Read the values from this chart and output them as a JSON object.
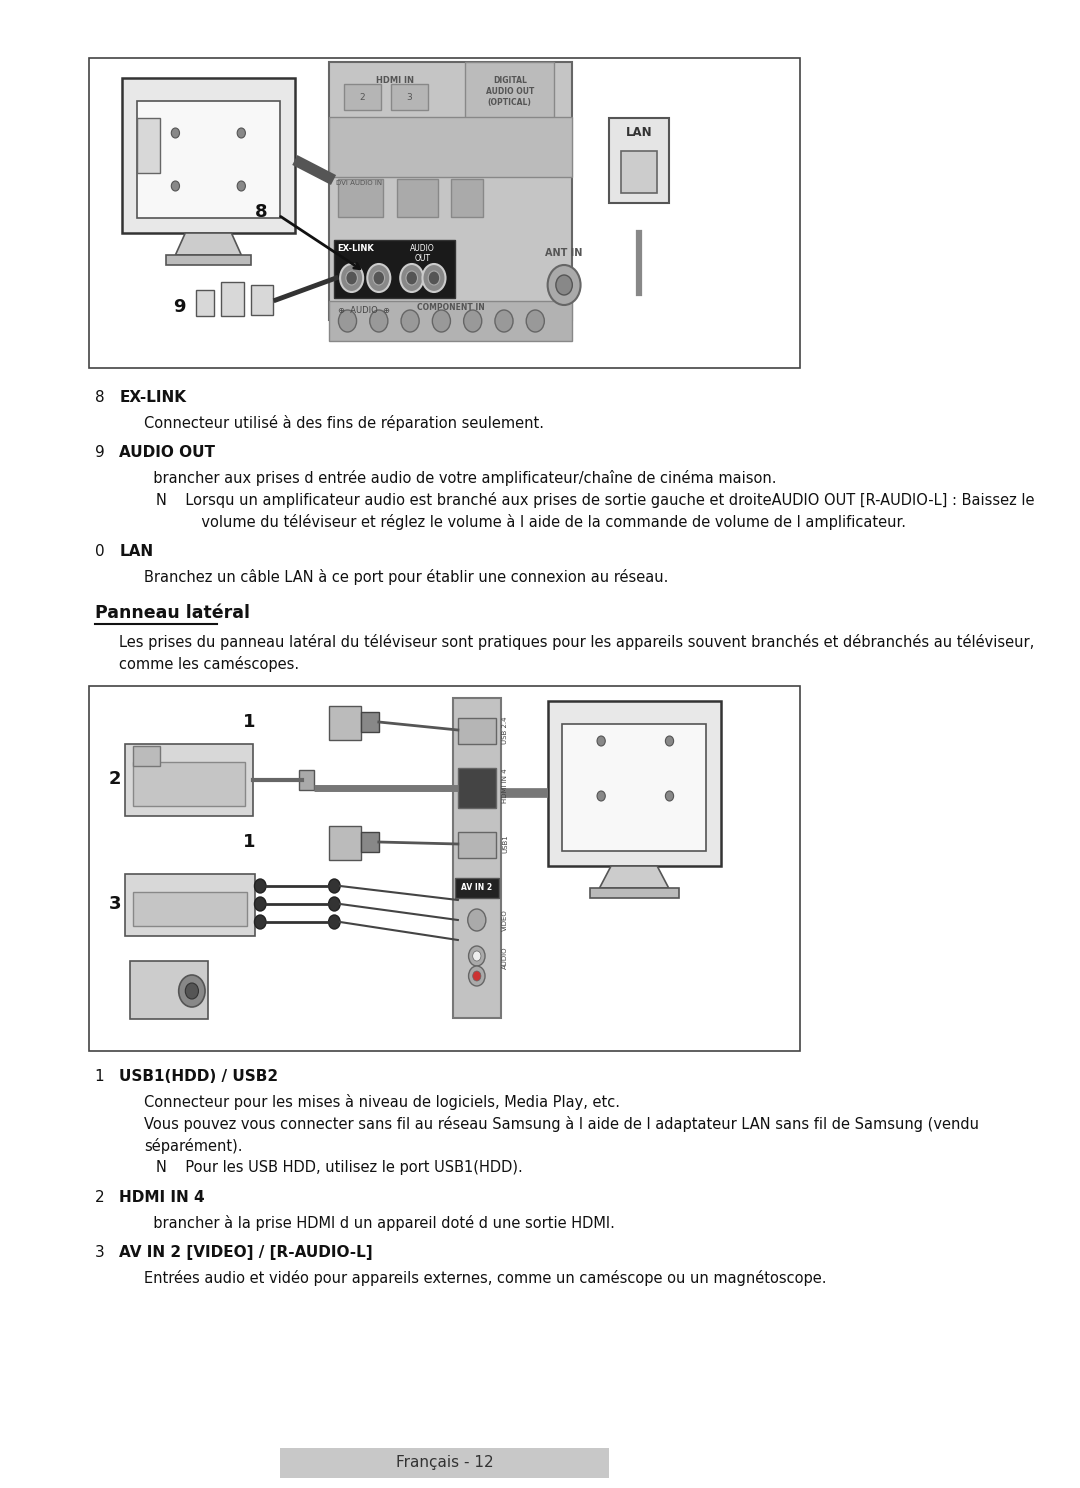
{
  "bg_color": "#ffffff",
  "border_color": "#000000",
  "text_color": "#000000",
  "section_title": "Panneau latéral",
  "section_intro_1": "Les prises du panneau latéral du téléviseur sont pratiques pour les appareils souvent branchés et débranchés au téléviseur,",
  "section_intro_2": "comme les caméscopes.",
  "items_top": [
    {
      "num": "8",
      "label": "EX-LINK",
      "desc": "Connecteur utilisé à des fins de réparation seulement.",
      "note": ""
    },
    {
      "num": "9",
      "label": "AUDIO OUT",
      "desc": "  brancher aux prises d entrée audio de votre amplificateur/chaîne de cinéma maison.",
      "note": "N    Lorsqu un amplificateur audio est branché aux prises de sortie gauche et droiteAUDIO OUT [R-AUDIO-L] : Baissez le",
      "note2": "       volume du téléviseur et réglez le volume à l aide de la commande de volume de l amplificateur."
    },
    {
      "num": "0",
      "label": "LAN",
      "desc": "Branchez un câble LAN à ce port pour établir une connexion au réseau.",
      "note": ""
    }
  ],
  "items_bottom": [
    {
      "num": "1",
      "label": "USB1(HDD) / USB2",
      "desc": "Connecteur pour les mises à niveau de logiciels, Media Play, etc.",
      "desc2": "Vous pouvez vous connecter sans fil au réseau Samsung à l aide de l adaptateur LAN sans fil de Samsung (vendu",
      "desc3": "séparément).",
      "note": "N    Pour les USB HDD, utilisez le port USB1(HDD)."
    },
    {
      "num": "2",
      "label": "HDMI IN 4",
      "desc": "  brancher à la prise HDMI d un appareil doté d une sortie HDMI.",
      "note": ""
    },
    {
      "num": "3",
      "label": "AV IN 2 [VIDEO] / [R-AUDIO-L]",
      "desc": "Entrées audio et vidéo pour appareils externes, comme un caméscope ou un magnétoscope.",
      "note": ""
    }
  ],
  "footer_text": "Français - 12",
  "footer_bg": "#c8c8c8"
}
